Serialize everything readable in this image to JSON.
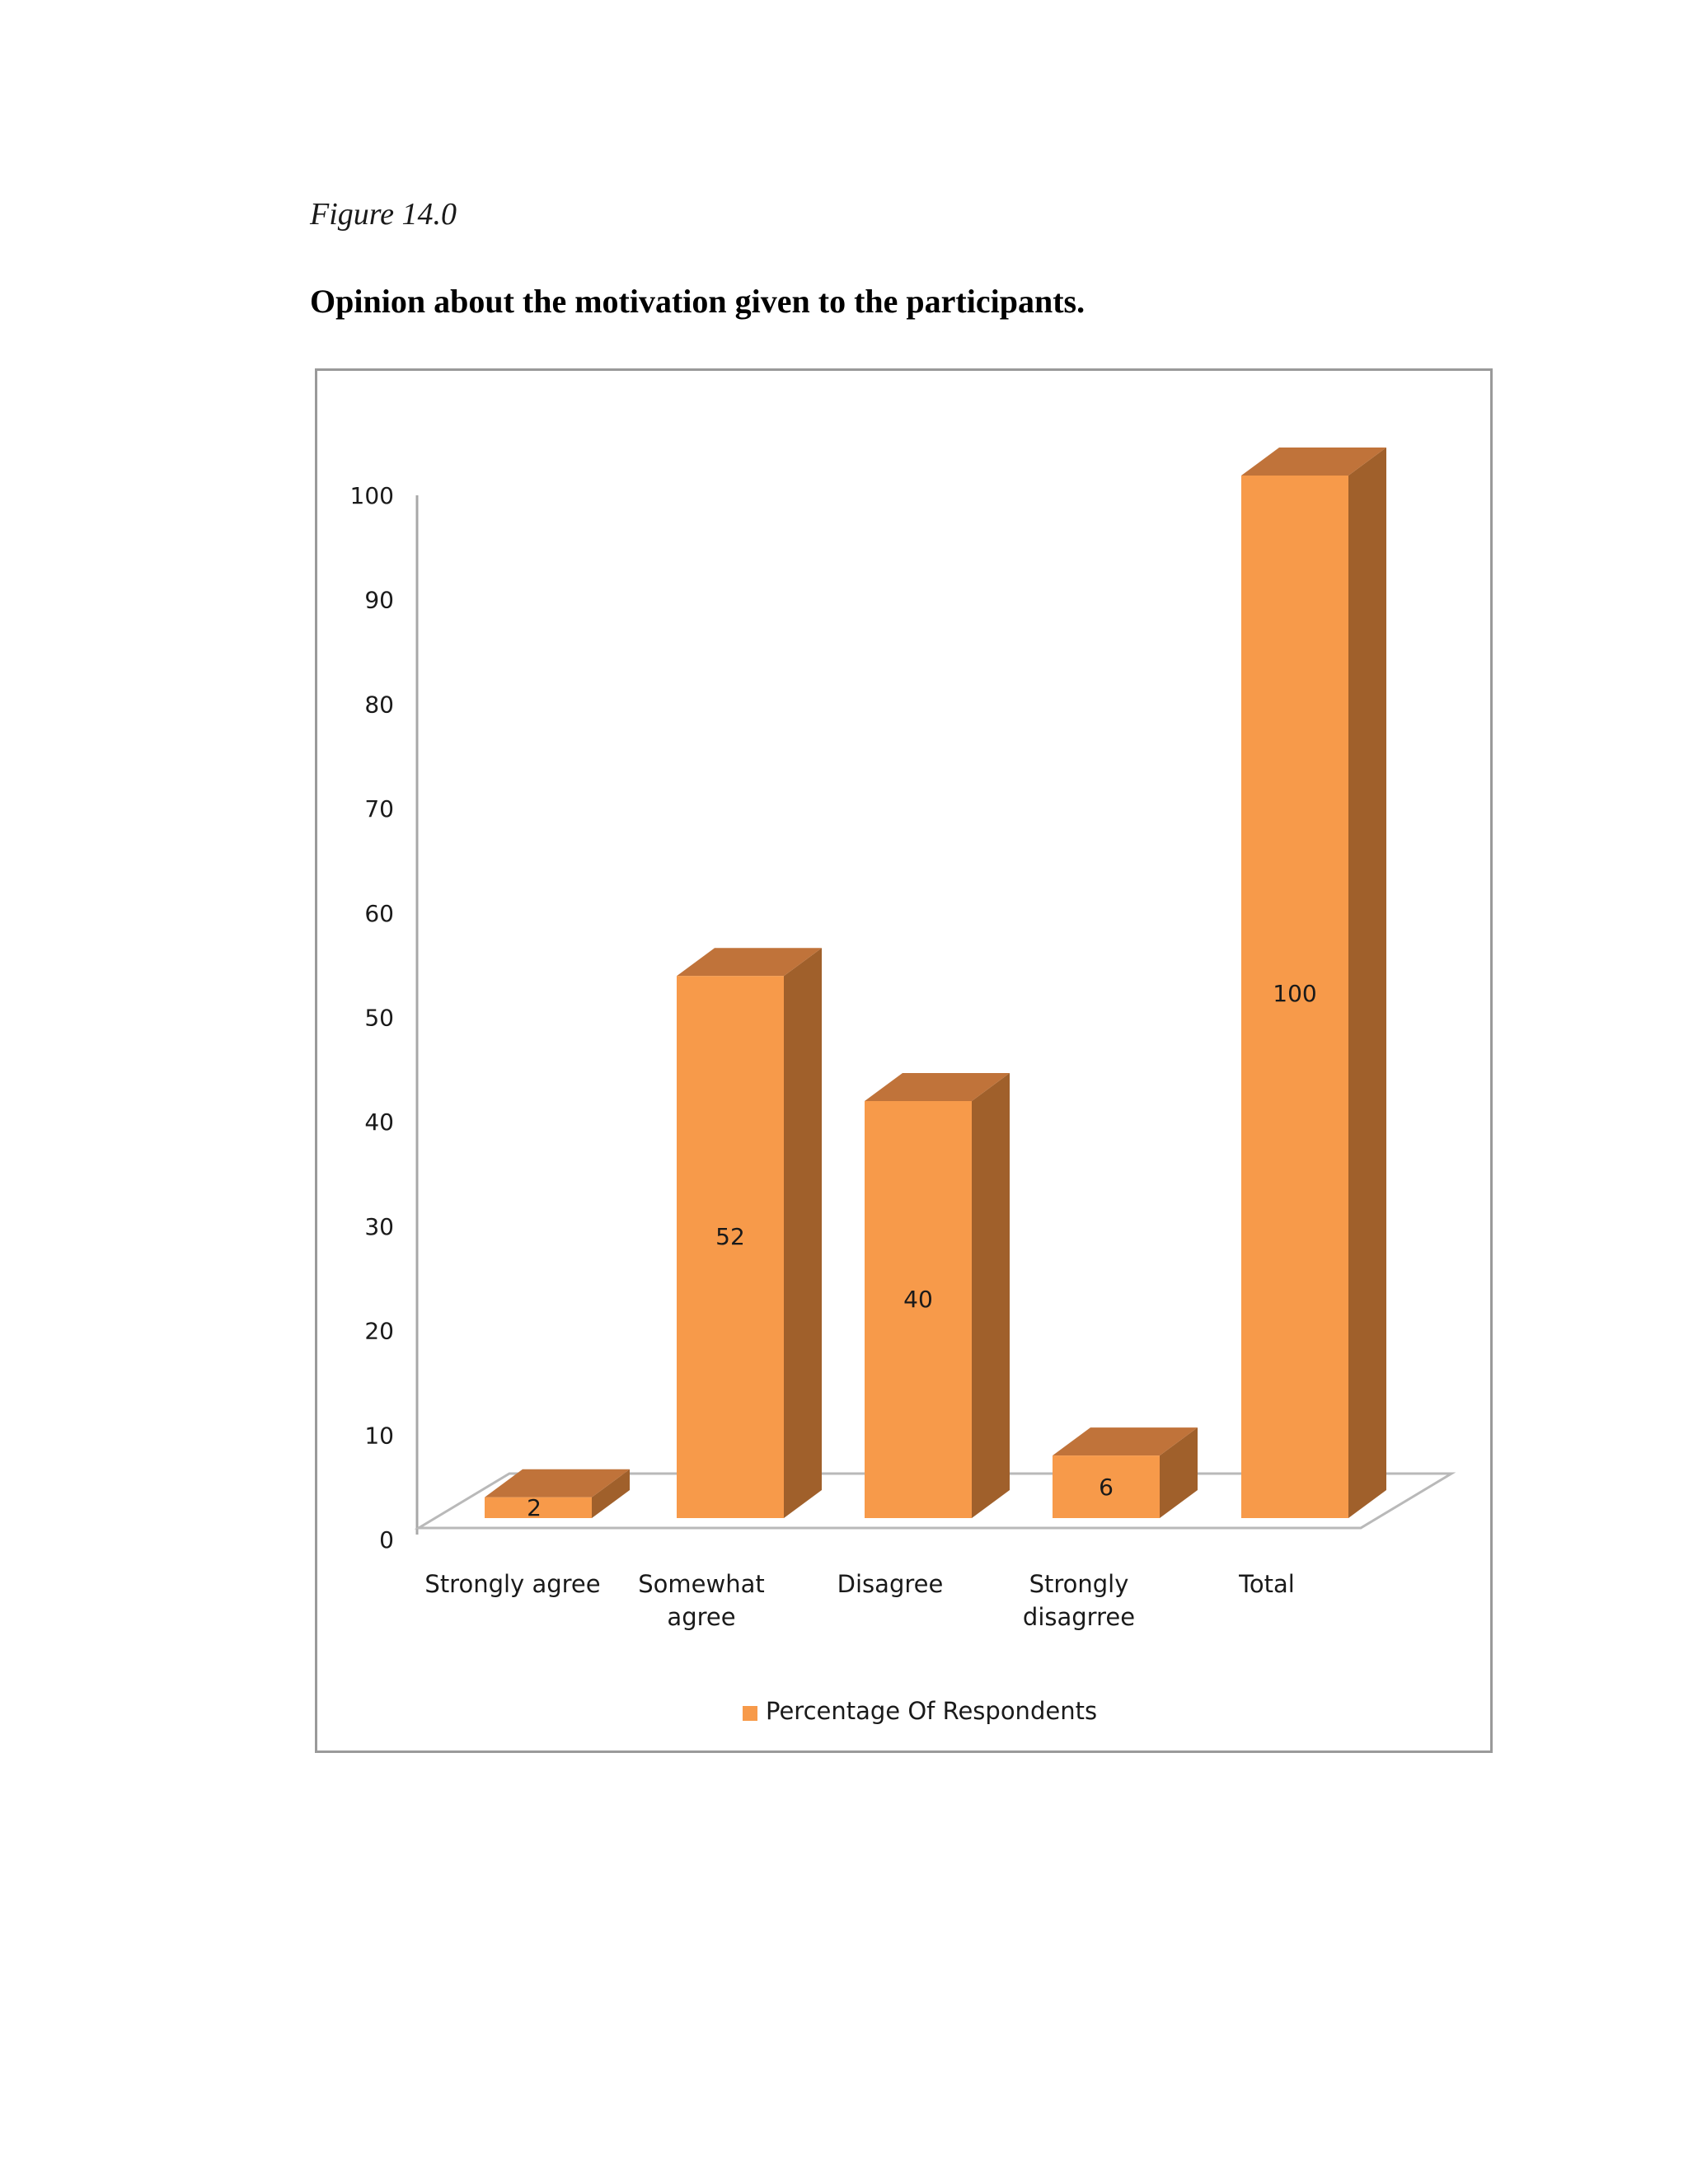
{
  "figure_label": "Figure 14.0",
  "title": "Opinion about the motivation given to the participants.",
  "chart_data": {
    "type": "bar",
    "categories": [
      "Strongly agree",
      "Somewhat agree",
      "Disagree",
      "Strongly disagrree",
      "Total"
    ],
    "series": [
      {
        "name": "Percentage Of Respondents",
        "values": [
          2,
          52,
          40,
          6,
          100
        ]
      }
    ],
    "data_labels": [
      "2",
      "52",
      "40",
      "6",
      "100"
    ],
    "yticks": [
      0,
      10,
      20,
      30,
      40,
      50,
      60,
      70,
      80,
      90,
      100
    ],
    "ylim": [
      0,
      100
    ],
    "xlabel": "",
    "ylabel": "",
    "legend_position": "bottom",
    "grid": false,
    "style": "3d-column",
    "colors": {
      "front": "#f79a4a",
      "side": "#a0602b",
      "top": "#c0733a"
    }
  }
}
